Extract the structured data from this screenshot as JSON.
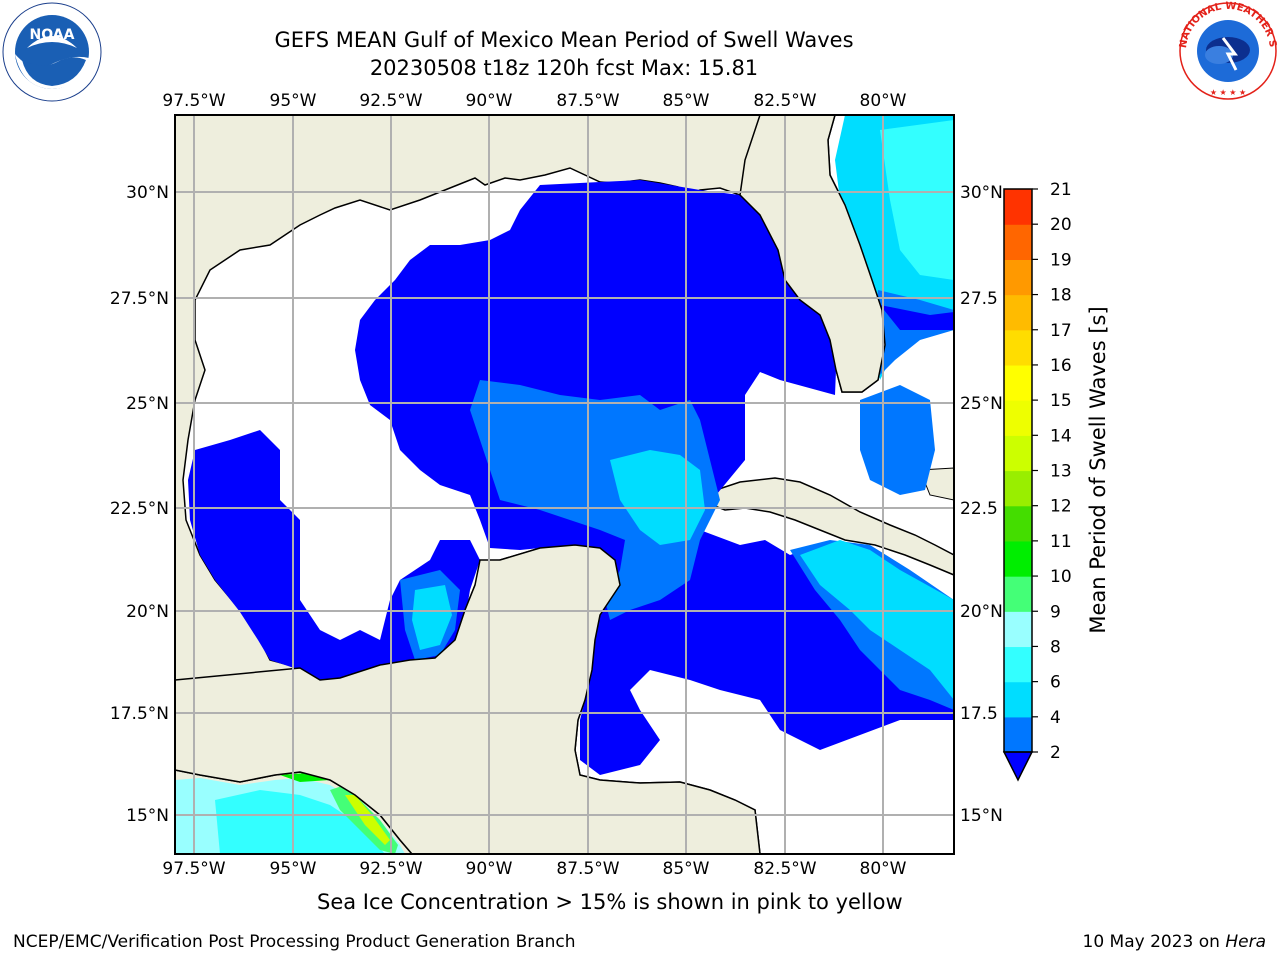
{
  "title": {
    "line1": "GEFS MEAN Gulf of Mexico Mean Period of Swell Waves",
    "line2": "20230508 t18z 120h fcst   Max: 15.81"
  },
  "logos": {
    "left": "noaa-logo",
    "right": "nws-logo"
  },
  "map": {
    "longitude_labels": [
      "97.5°W",
      "95°W",
      "92.5°W",
      "90°W",
      "87.5°W",
      "85°W",
      "82.5°W",
      "80°W"
    ],
    "latitude_labels_left": [
      "30°N",
      "27.5°N",
      "25°N",
      "22.5°N",
      "20°N",
      "17.5°N",
      "15°N"
    ],
    "latitude_labels_right": [
      "30°N",
      "27.5",
      "25°N",
      "22.5",
      "20°N",
      "17.5",
      "15°N"
    ],
    "land_color": "#eeeedd",
    "ocean_blank_color": "#ffffff",
    "grid_color": "#b0b0b0"
  },
  "colorbar": {
    "label": "Mean Period of Swell Waves [s]",
    "ticks": [
      "2",
      "4",
      "6",
      "8",
      "9",
      "10",
      "11",
      "12",
      "13",
      "14",
      "15",
      "16",
      "17",
      "18",
      "19",
      "20",
      "21"
    ],
    "colors": [
      "#0000ff",
      "#0077ff",
      "#00ddff",
      "#33ffff",
      "#99ffff",
      "#44ff77",
      "#00ee00",
      "#44dd00",
      "#99ee00",
      "#ccff00",
      "#eeff00",
      "#ffff00",
      "#ffdd00",
      "#ffbb00",
      "#ff9900",
      "#ff6600",
      "#ff3300",
      "#ff0000"
    ]
  },
  "note": "Sea Ice Concentration > 15% is shown in pink to yellow",
  "footer": {
    "left": "NCEP/EMC/Verification Post Processing Product Generation Branch",
    "date": "10 May 2023 on ",
    "machine": "Hera"
  }
}
